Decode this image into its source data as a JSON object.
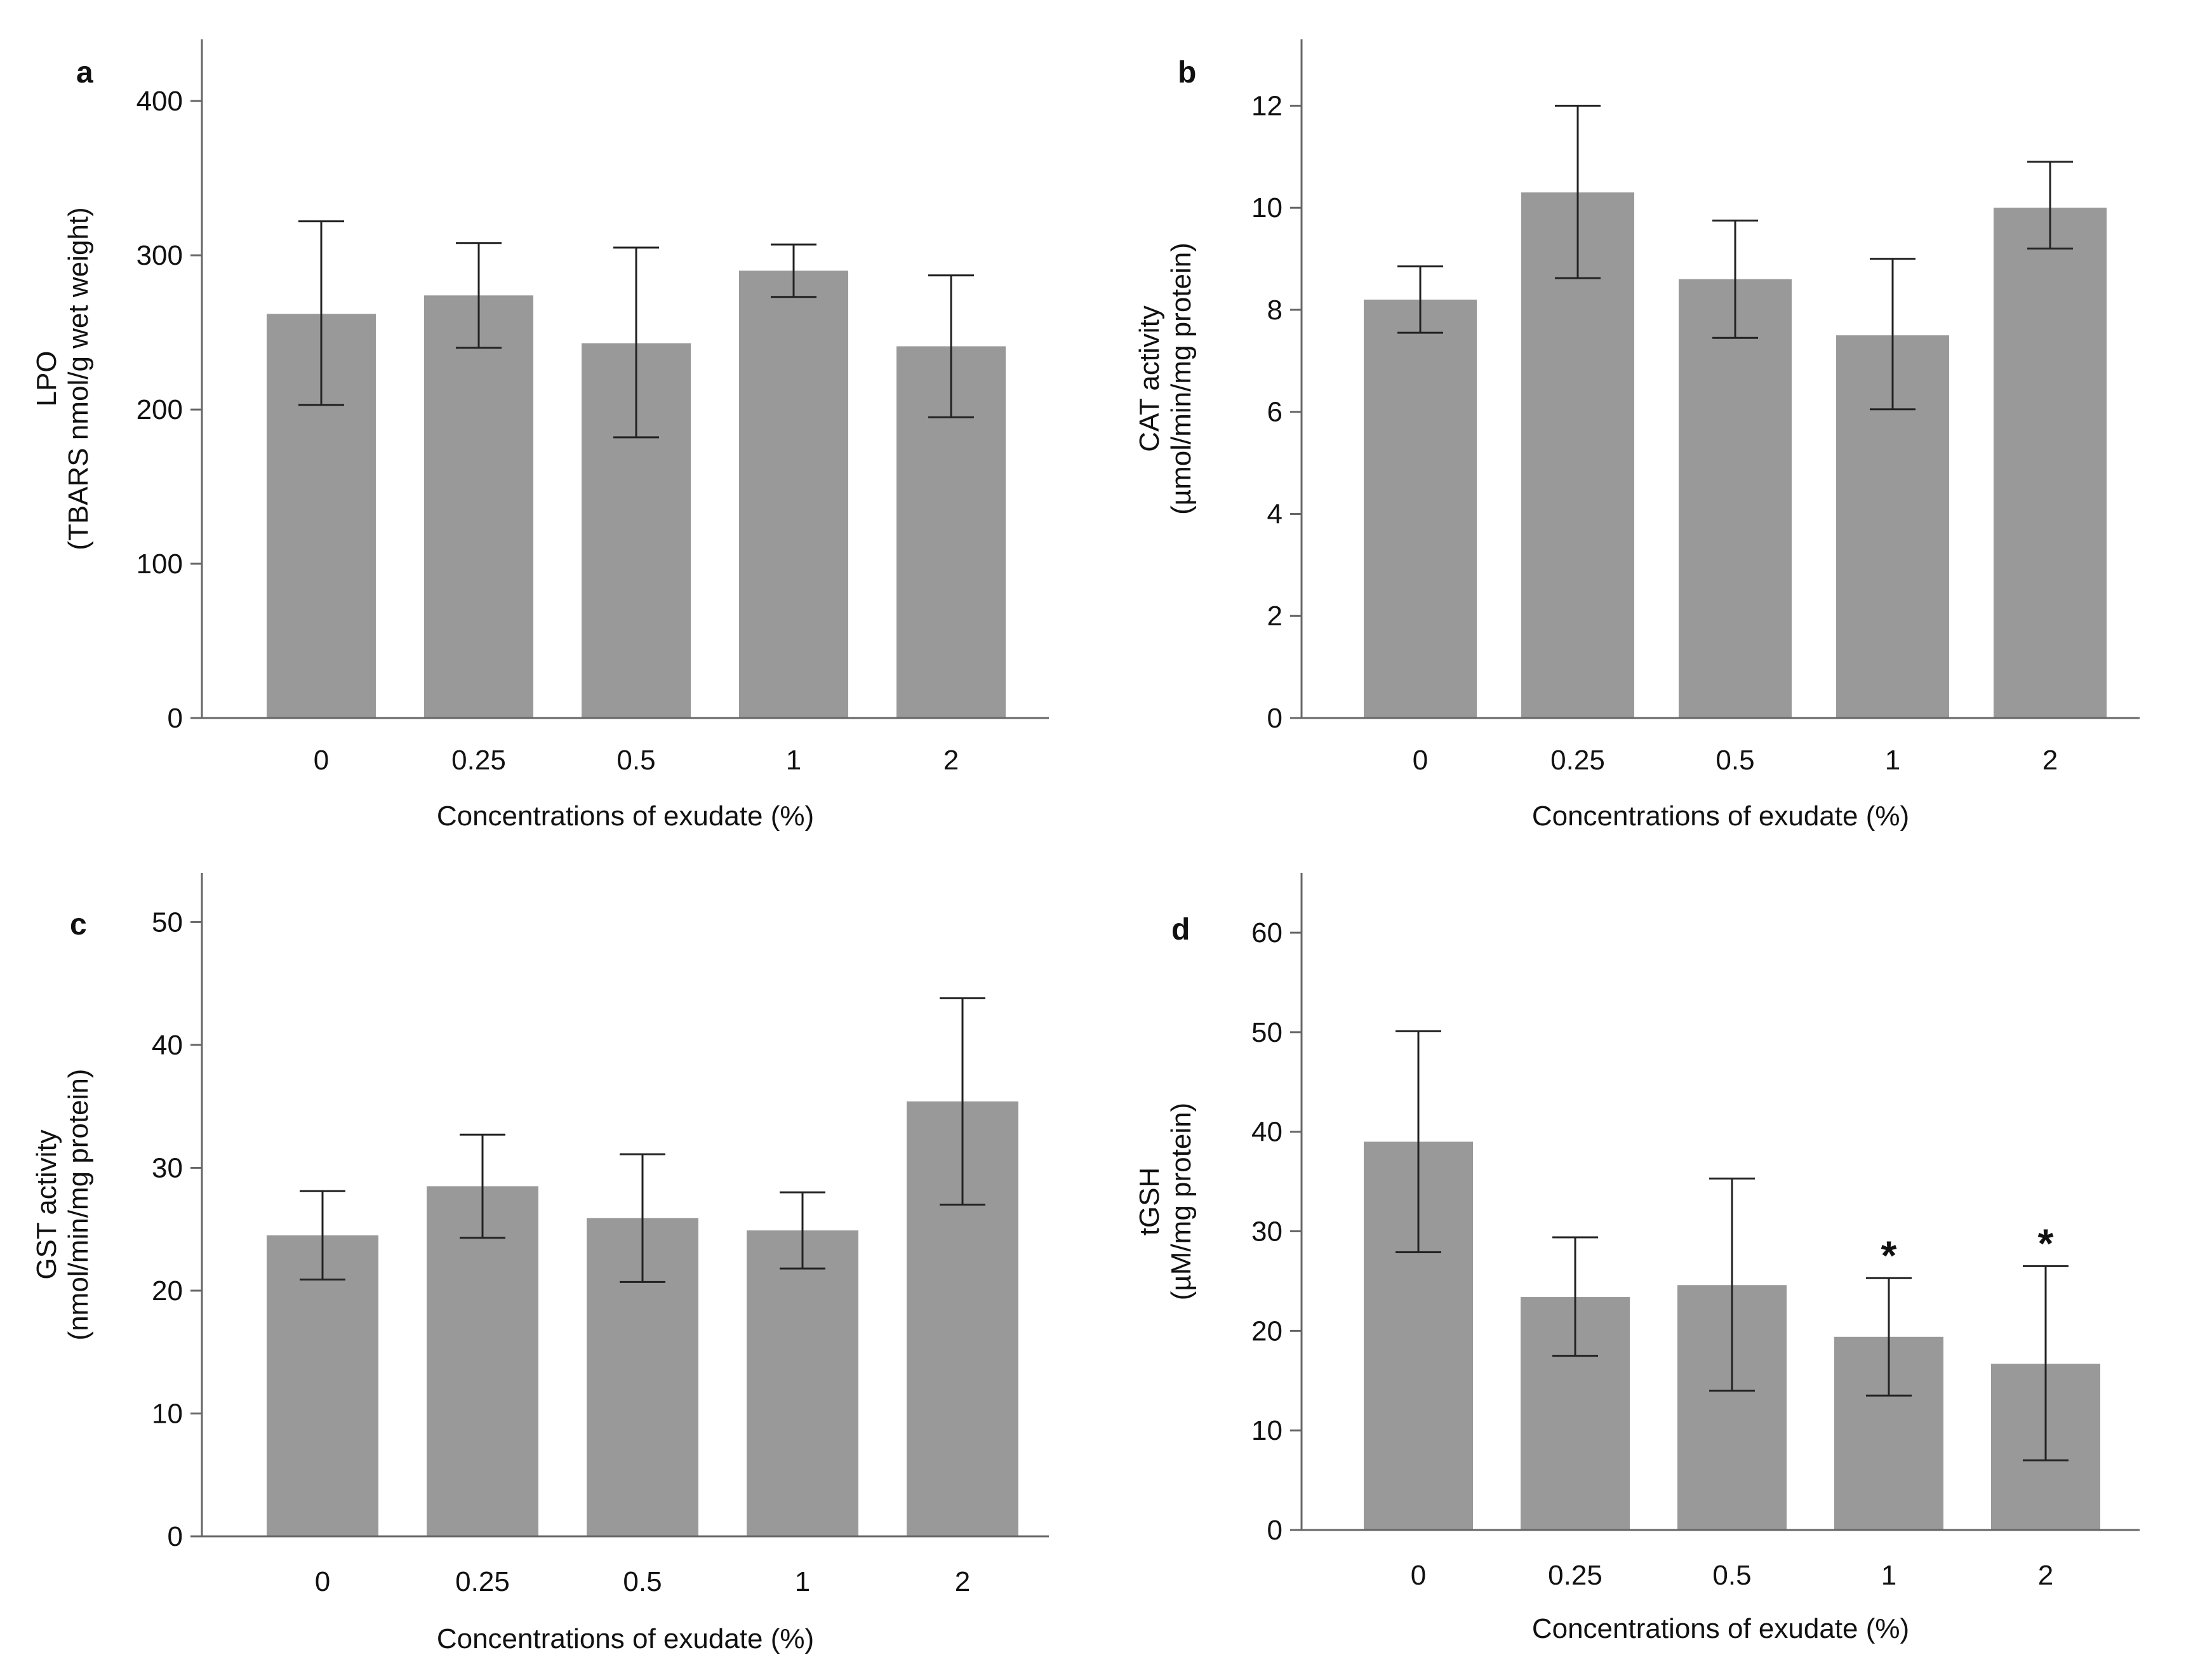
{
  "chart_data": [
    {
      "type": "bar",
      "panel": "a",
      "categories": [
        "0",
        "0.25",
        "0.5",
        "1",
        "2"
      ],
      "values": [
        262,
        274,
        243,
        290,
        241
      ],
      "error_low": [
        203,
        240,
        182,
        273,
        195
      ],
      "error_high": [
        322,
        308,
        305,
        307,
        287
      ],
      "significance": [
        "",
        "",
        "",
        "",
        ""
      ],
      "ylim": [
        0,
        440
      ],
      "yticks": [
        0,
        100,
        200,
        300,
        400
      ],
      "ylabel": "LPO",
      "ylabel2": "(TBARS nmol/g wet weight)",
      "xlabel": "Concentrations of exudate (%)",
      "bar_color": "#999999"
    },
    {
      "type": "bar",
      "panel": "b",
      "categories": [
        "0",
        "0.25",
        "0.5",
        "1",
        "2"
      ],
      "values": [
        8.2,
        10.3,
        8.6,
        7.5,
        10.0
      ],
      "error_low": [
        7.55,
        8.62,
        7.45,
        6.05,
        9.2
      ],
      "error_high": [
        8.85,
        12.0,
        9.75,
        9.0,
        10.9
      ],
      "significance": [
        "",
        "",
        "",
        "",
        ""
      ],
      "ylim": [
        0,
        13.3
      ],
      "yticks": [
        0,
        2,
        4,
        6,
        8,
        10,
        12
      ],
      "ylabel": "CAT activity",
      "ylabel2": "(µmol/min/mg protein)",
      "xlabel": "Concentrations of exudate (%)",
      "bar_color": "#999999"
    },
    {
      "type": "bar",
      "panel": "c",
      "categories": [
        "0",
        "0.25",
        "0.5",
        "1",
        "2"
      ],
      "values": [
        24.5,
        28.5,
        25.9,
        24.9,
        35.4
      ],
      "error_low": [
        20.9,
        24.3,
        20.7,
        21.8,
        27.0
      ],
      "error_high": [
        28.1,
        32.7,
        31.1,
        28.0,
        43.8
      ],
      "significance": [
        "",
        "",
        "",
        "",
        ""
      ],
      "ylim": [
        0,
        54
      ],
      "yticks": [
        0,
        10,
        20,
        30,
        40,
        50
      ],
      "ylabel": "GST activity",
      "ylabel2": "(nmol/min/mg protein)",
      "xlabel": "Concentrations of exudate (%)",
      "bar_color": "#999999"
    },
    {
      "type": "bar",
      "panel": "d",
      "categories": [
        "0",
        "0.25",
        "0.5",
        "1",
        "2"
      ],
      "values": [
        39.0,
        23.4,
        24.6,
        19.4,
        16.7
      ],
      "error_low": [
        27.9,
        17.5,
        14.0,
        13.5,
        7.0
      ],
      "error_high": [
        50.1,
        29.4,
        35.3,
        25.3,
        26.5
      ],
      "significance": [
        "",
        "",
        "",
        "*",
        "*"
      ],
      "ylim": [
        0,
        66
      ],
      "yticks": [
        0,
        10,
        20,
        30,
        40,
        50,
        60
      ],
      "ylabel": "tGSH",
      "ylabel2": "(µM/mg protein)",
      "xlabel": "Concentrations of exudate (%)",
      "bar_color": "#999999"
    }
  ]
}
